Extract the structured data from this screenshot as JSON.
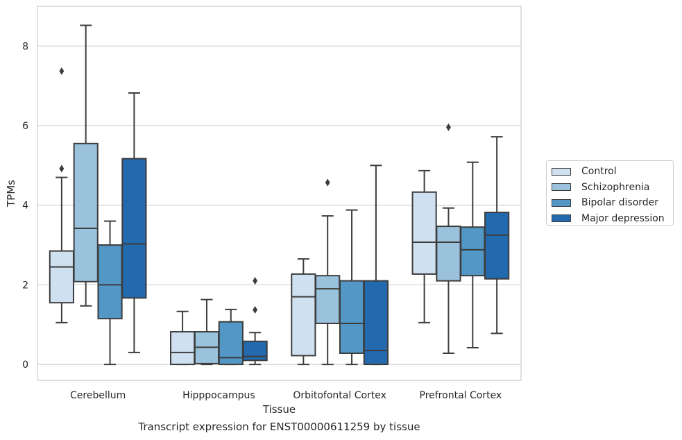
{
  "chart_data": {
    "type": "box",
    "title": "",
    "caption": "Transcript expression for ENST00000611259 by tissue",
    "xlabel": "Tissue",
    "ylabel": "TPMs",
    "ylim": [
      -0.4,
      9.0
    ],
    "yticks": [
      0,
      2,
      4,
      6,
      8
    ],
    "grid": true,
    "legend_position": "right",
    "categories": [
      "Cerebellum",
      "Hipppocampus",
      "Orbitofontal Cortex",
      "Prefrontal Cortex"
    ],
    "series": [
      {
        "name": "Control",
        "color": "#cfe0f1",
        "boxes": [
          {
            "whislo": 1.05,
            "q1": 1.55,
            "med": 2.45,
            "q3": 2.85,
            "whishi": 4.7,
            "fliers": [
              4.92,
              7.37
            ]
          },
          {
            "whislo": 0.0,
            "q1": 0.0,
            "med": 0.3,
            "q3": 0.82,
            "whishi": 1.33,
            "fliers": []
          },
          {
            "whislo": 0.0,
            "q1": 0.22,
            "med": 1.7,
            "q3": 2.27,
            "whishi": 2.65,
            "fliers": []
          },
          {
            "whislo": 1.05,
            "q1": 2.27,
            "med": 3.07,
            "q3": 4.33,
            "whishi": 4.87,
            "fliers": []
          }
        ]
      },
      {
        "name": "Schizophrenia",
        "color": "#9ac2dc",
        "boxes": [
          {
            "whislo": 1.47,
            "q1": 2.08,
            "med": 3.42,
            "q3": 5.55,
            "whishi": 8.52,
            "fliers": []
          },
          {
            "whislo": 0.0,
            "q1": 0.02,
            "med": 0.43,
            "q3": 0.82,
            "whishi": 1.63,
            "fliers": []
          },
          {
            "whislo": 0.0,
            "q1": 1.03,
            "med": 1.9,
            "q3": 2.23,
            "whishi": 3.73,
            "fliers": [
              4.57
            ]
          },
          {
            "whislo": 0.28,
            "q1": 2.1,
            "med": 3.07,
            "q3": 3.47,
            "whishi": 3.93,
            "fliers": [
              5.96
            ]
          }
        ]
      },
      {
        "name": "Bipolar disorder",
        "color": "#5297c6",
        "boxes": [
          {
            "whislo": 0.0,
            "q1": 1.15,
            "med": 2.0,
            "q3": 3.0,
            "whishi": 3.6,
            "fliers": []
          },
          {
            "whislo": 0.0,
            "q1": 0.0,
            "med": 0.17,
            "q3": 1.07,
            "whishi": 1.38,
            "fliers": []
          },
          {
            "whislo": 0.0,
            "q1": 0.28,
            "med": 1.03,
            "q3": 2.1,
            "whishi": 3.88,
            "fliers": []
          },
          {
            "whislo": 0.42,
            "q1": 2.23,
            "med": 2.88,
            "q3": 3.45,
            "whishi": 5.08,
            "fliers": []
          }
        ]
      },
      {
        "name": "Major depression",
        "color": "#2369ad",
        "boxes": [
          {
            "whislo": 0.3,
            "q1": 1.67,
            "med": 3.03,
            "q3": 5.17,
            "whishi": 6.82,
            "fliers": []
          },
          {
            "whislo": 0.0,
            "q1": 0.1,
            "med": 0.2,
            "q3": 0.58,
            "whishi": 0.8,
            "fliers": [
              1.37,
              2.1
            ]
          },
          {
            "whislo": 0.0,
            "q1": 0.0,
            "med": 0.35,
            "q3": 2.1,
            "whishi": 5.0,
            "fliers": []
          },
          {
            "whislo": 0.78,
            "q1": 2.15,
            "med": 3.25,
            "q3": 3.82,
            "whishi": 5.72,
            "fliers": []
          }
        ]
      }
    ]
  }
}
